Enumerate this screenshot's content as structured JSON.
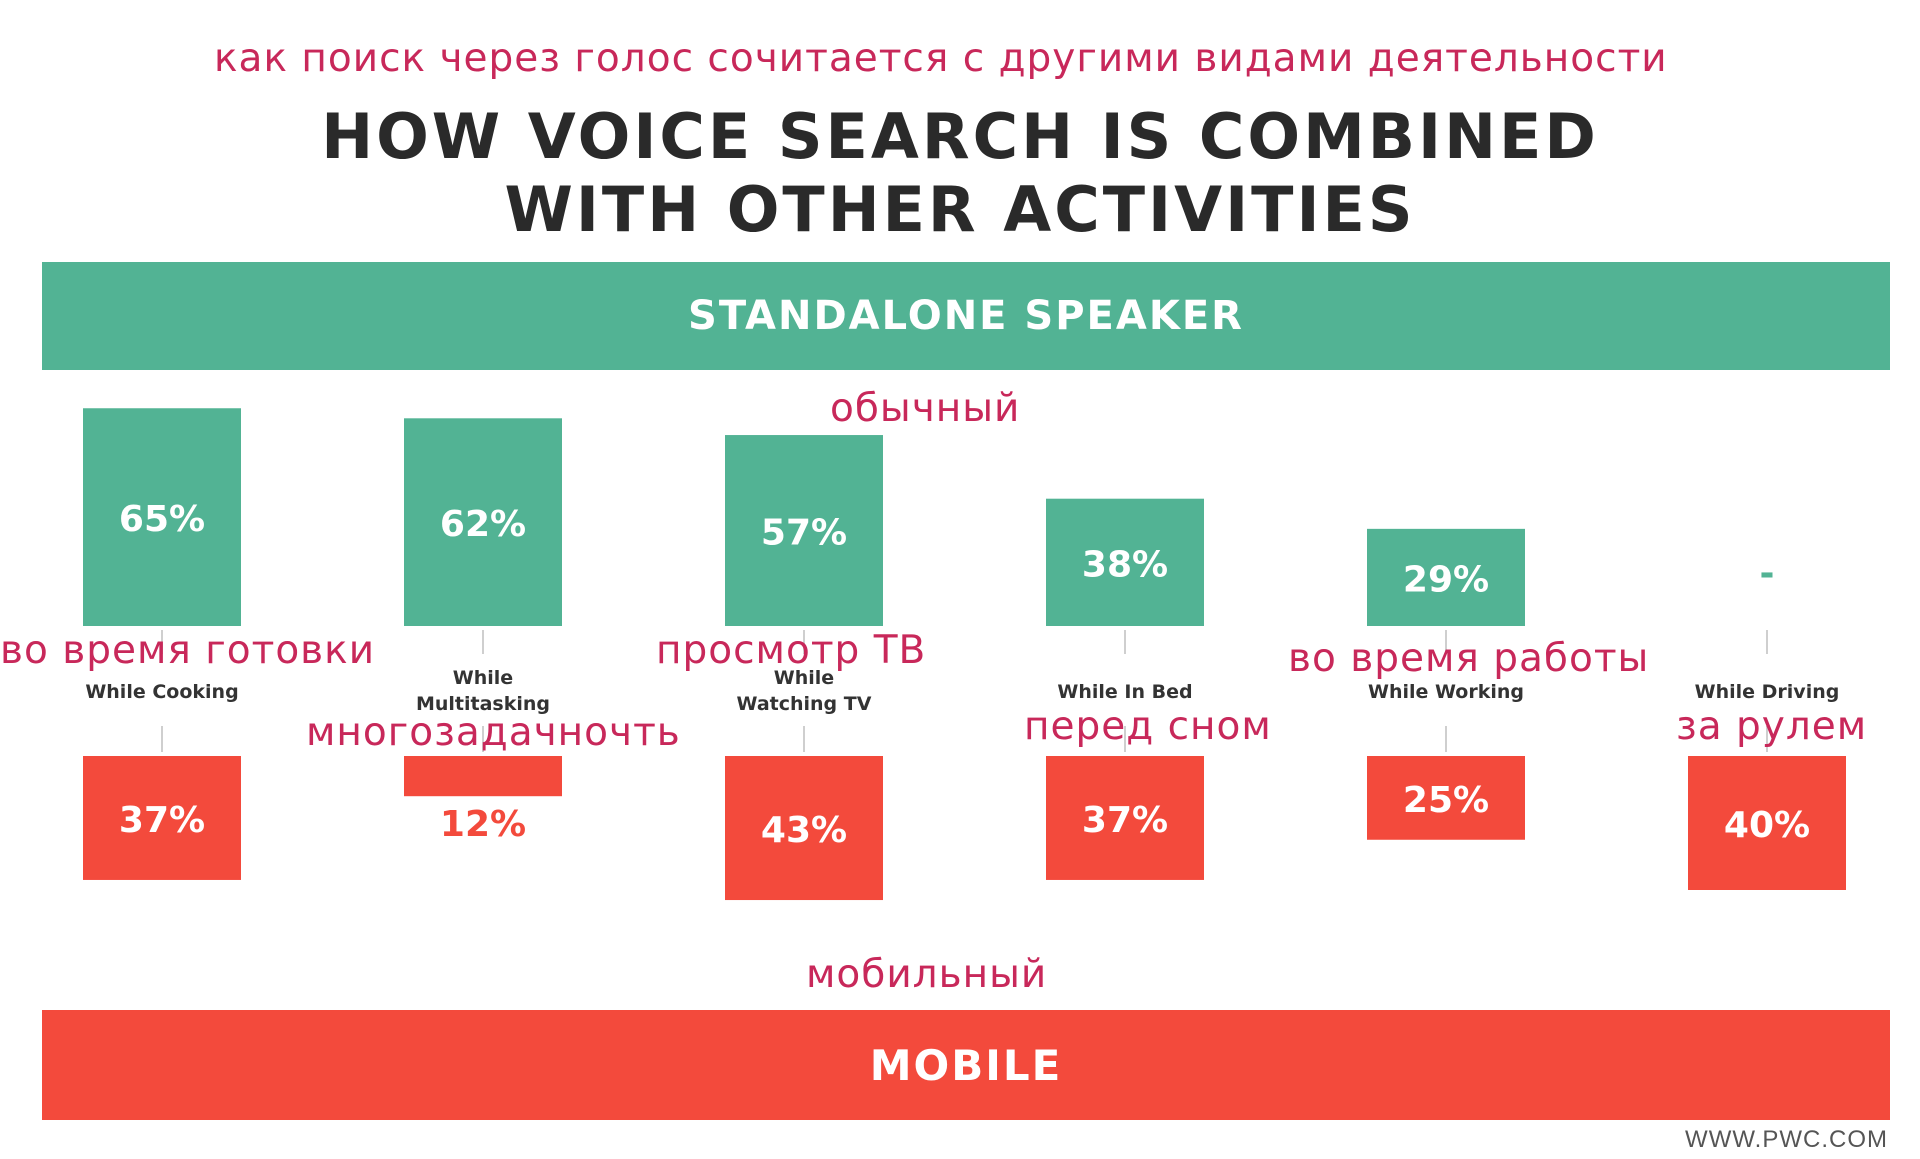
{
  "annotations": {
    "heading_ru": "как поиск через голос сочитается с другими видами деятельности",
    "speaker_ru": "обычный",
    "mobile_ru": "мобильный",
    "category_ru": [
      "во время готовки",
      "многозадачночть",
      "просмотр ТВ",
      "перед сном",
      "во время работы",
      "за рулем"
    ]
  },
  "title": {
    "line1": "HOW VOICE SEARCH IS COMBINED",
    "line2": "WITH OTHER ACTIVITIES"
  },
  "bands": {
    "speaker": "STANDALONE SPEAKER",
    "mobile": "MOBILE"
  },
  "credit": "WWW.PWC.COM",
  "colors": {
    "speaker": "#52b394",
    "mobile": "#f34a3c",
    "annotation": "#c8285a",
    "label": "#333333"
  },
  "chart_data": {
    "type": "bar",
    "categories": [
      [
        "While Cooking"
      ],
      [
        "While",
        "Multitasking"
      ],
      [
        "While",
        "Watching TV"
      ],
      [
        "While In Bed"
      ],
      [
        "While Working"
      ],
      [
        "While Driving"
      ]
    ],
    "series": [
      {
        "name": "STANDALONE SPEAKER",
        "values": [
          65,
          62,
          57,
          38,
          29,
          null
        ],
        "labels": [
          "65%",
          "62%",
          "57%",
          "38%",
          "29%",
          "-"
        ]
      },
      {
        "name": "MOBILE",
        "values": [
          37,
          12,
          43,
          37,
          25,
          40
        ],
        "labels": [
          "37%",
          "12%",
          "43%",
          "37%",
          "25%",
          "40%"
        ]
      }
    ]
  }
}
